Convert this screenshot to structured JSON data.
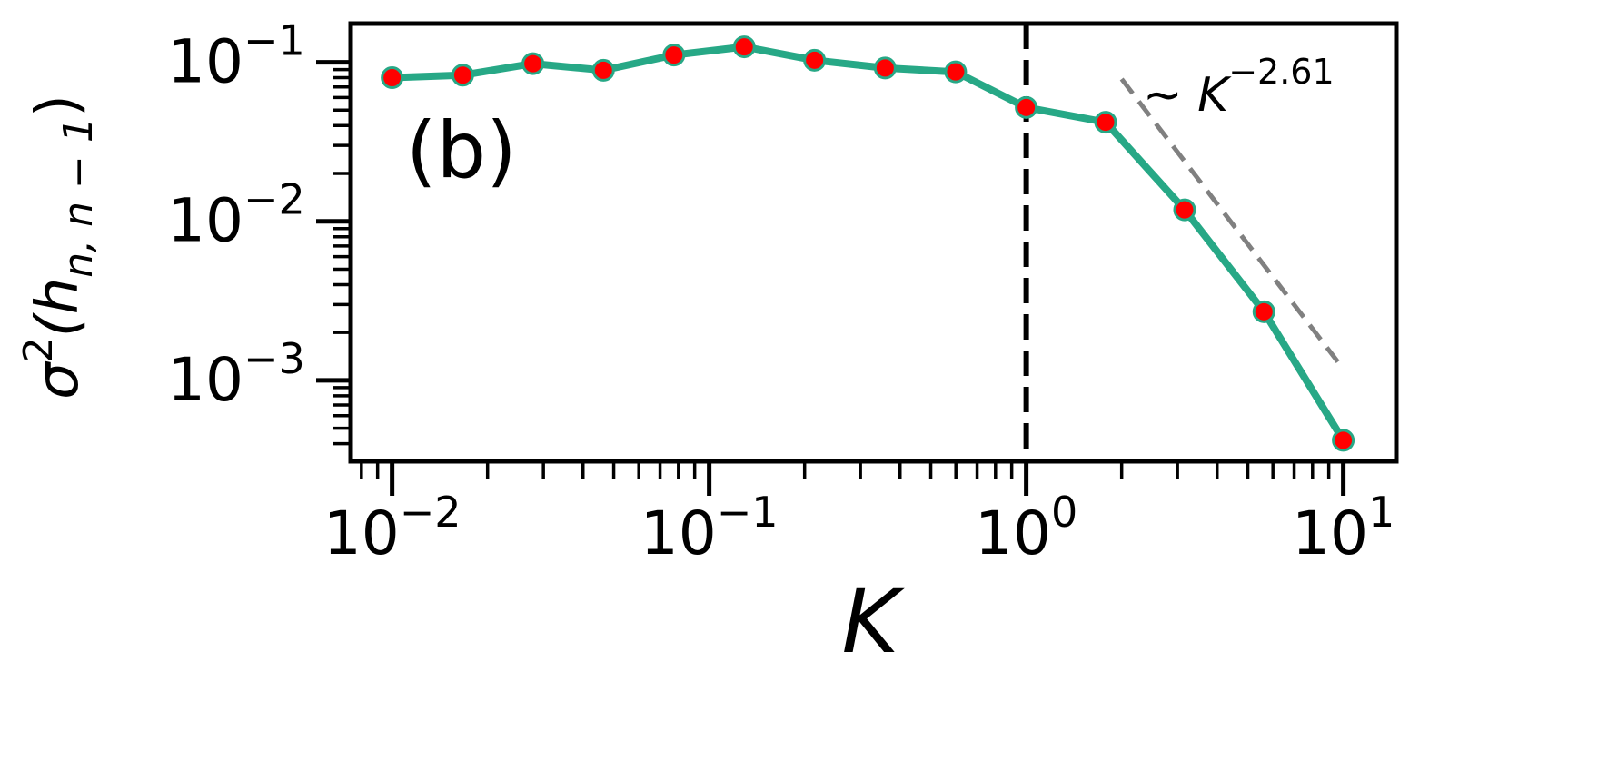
{
  "chart_data": {
    "type": "line",
    "panel_label": "(b)",
    "xlabel": "K",
    "ylabel": {
      "base": "σ",
      "sup": "2",
      "open": "(h",
      "sub": "n, n − 1",
      "close": ")"
    },
    "xscale": "log",
    "yscale": "log",
    "xlim": [
      0.0074,
      14.7
    ],
    "ylim": [
      0.00031,
      0.175
    ],
    "xticks": [
      {
        "value": 0.01,
        "base": "10",
        "exp": "−2"
      },
      {
        "value": 0.1,
        "base": "10",
        "exp": "−1"
      },
      {
        "value": 1,
        "base": "10",
        "exp": "0"
      },
      {
        "value": 10,
        "base": "10",
        "exp": "1"
      }
    ],
    "yticks": [
      {
        "value": 0.001,
        "base": "10",
        "exp": "−3"
      },
      {
        "value": 0.01,
        "base": "10",
        "exp": "−2"
      },
      {
        "value": 0.1,
        "base": "10",
        "exp": "−1"
      }
    ],
    "grid": false,
    "legend": "none",
    "series": [
      {
        "x": [
          0.01,
          0.0167,
          0.0278,
          0.0464,
          0.0774,
          0.129,
          0.215,
          0.359,
          0.599,
          1.0,
          1.78,
          3.16,
          5.62,
          10.0
        ],
        "y": [
          0.08,
          0.083,
          0.098,
          0.089,
          0.111,
          0.125,
          0.103,
          0.092,
          0.087,
          0.052,
          0.042,
          0.0118,
          0.0027,
          0.00042
        ],
        "line_color": "#27a886",
        "marker_color": "#ff0000"
      }
    ],
    "vline": {
      "x": 1.0,
      "color": "#000000",
      "style": "dashed"
    },
    "guide_line": {
      "x": [
        2.0,
        10.0
      ],
      "y": [
        0.0785,
        0.00118
      ],
      "color": "#808080",
      "style": "dashed",
      "label_prefix": "∼ K",
      "label_exp": "−2.61"
    }
  }
}
